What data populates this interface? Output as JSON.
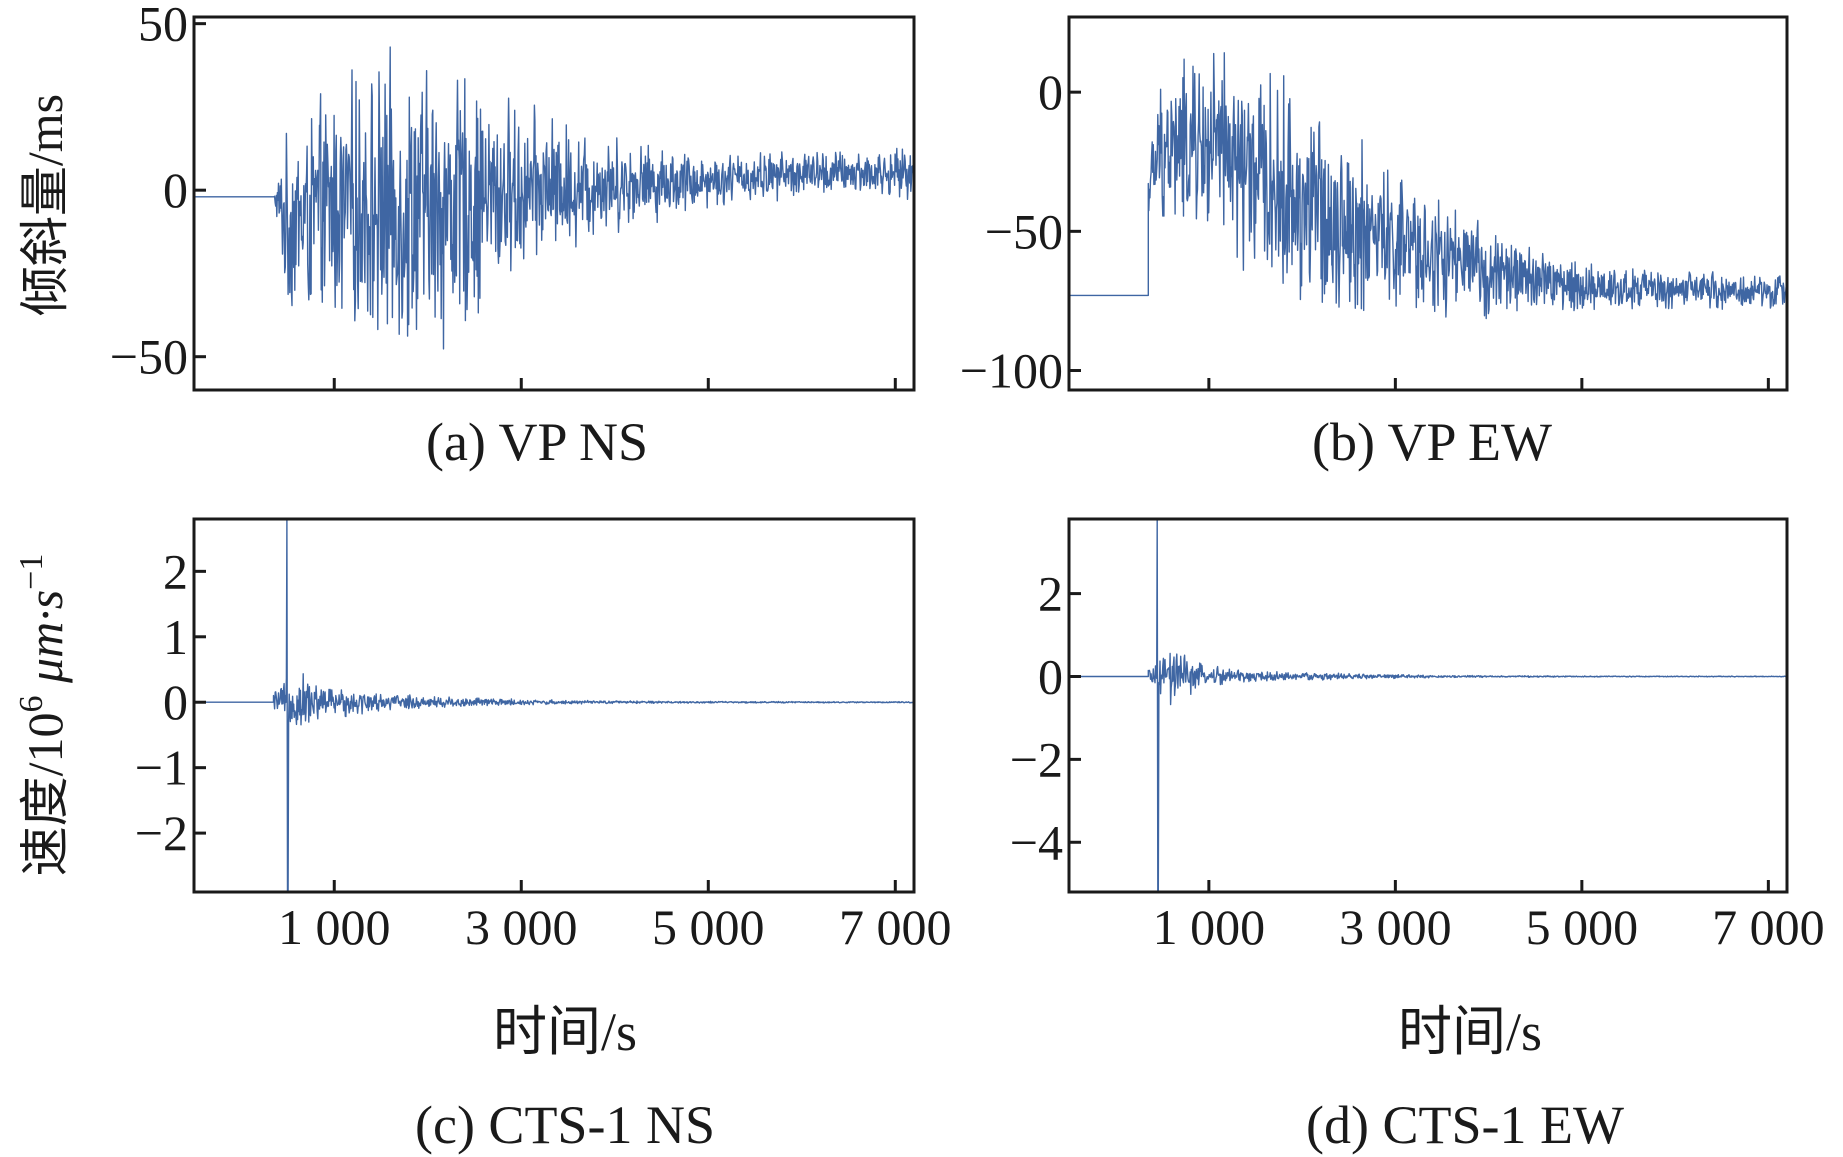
{
  "figure": {
    "ylabel_top": "倾斜量/ms",
    "ylabel_bottom_main": "速度/10",
    "ylabel_bottom_exp": "6",
    "ylabel_bottom_unit": " μm·s",
    "ylabel_bottom_unit_exp": "−1",
    "xlabel": "时间/s"
  },
  "chart_data": [
    {
      "id": "a",
      "type": "line",
      "caption": "(a) VP NS",
      "series": [
        {
          "name": "VP NS",
          "color": "#3f66a3",
          "envelope": {
            "baseline_before_event": -2,
            "event_start_s": 350,
            "points": [
              [
                350,
                -2,
                0
              ],
              [
                500,
                -10,
                30
              ],
              [
                1000,
                -5,
                40
              ],
              [
                1500,
                -5,
                48
              ],
              [
                2200,
                -5,
                48
              ],
              [
                3000,
                0,
                28
              ],
              [
                4000,
                2,
                16
              ],
              [
                5000,
                3,
                9
              ],
              [
                6000,
                5,
                8
              ],
              [
                7000,
                5,
                8
              ],
              [
                7200,
                5,
                8
              ]
            ]
          }
        }
      ],
      "xlim": [
        -500,
        7200
      ],
      "ylim": [
        -60,
        52
      ],
      "xticks": [
        1000,
        3000,
        5000,
        7000
      ],
      "xtick_labels_shown": false,
      "yticks": [
        -50,
        0,
        50
      ],
      "ytick_labels": [
        "−50",
        "0",
        "50"
      ]
    },
    {
      "id": "b",
      "type": "line",
      "caption": "(b) VP EW",
      "series": [
        {
          "name": "VP EW",
          "color": "#3f66a3",
          "envelope": {
            "baseline_before_event": -73,
            "event_start_s": 350,
            "points": [
              [
                350,
                -35,
                12
              ],
              [
                500,
                -20,
                30
              ],
              [
                1000,
                -20,
                40
              ],
              [
                2000,
                -40,
                45
              ],
              [
                3000,
                -55,
                30
              ],
              [
                4000,
                -65,
                18
              ],
              [
                5000,
                -70,
                10
              ],
              [
                6000,
                -71,
                8
              ],
              [
                7000,
                -72,
                7
              ],
              [
                7200,
                -72,
                7
              ]
            ]
          }
        }
      ],
      "xlim": [
        -500,
        7200
      ],
      "ylim": [
        -107,
        27
      ],
      "xticks": [
        1000,
        3000,
        5000,
        7000
      ],
      "xtick_labels_shown": false,
      "yticks": [
        -100,
        -50,
        0
      ],
      "ytick_labels": [
        "−100",
        "−50",
        "0"
      ]
    },
    {
      "id": "c",
      "type": "line",
      "caption": "(c) CTS-1 NS",
      "series": [
        {
          "name": "CTS-1 NS",
          "color": "#3f66a3",
          "envelope": {
            "baseline_before_event": 0,
            "event_start_s": 350,
            "spike": {
              "at_s": 500,
              "max": 2.8,
              "min": -2.9
            },
            "points": [
              [
                350,
                0,
                0.2
              ],
              [
                600,
                0,
                0.55
              ],
              [
                900,
                0,
                0.3
              ],
              [
                1500,
                0,
                0.15
              ],
              [
                2500,
                0,
                0.08
              ],
              [
                3500,
                0,
                0.03
              ],
              [
                5000,
                0,
                0.015
              ],
              [
                7200,
                0,
                0.01
              ]
            ]
          }
        }
      ],
      "xlim": [
        -500,
        7200
      ],
      "ylim": [
        -2.9,
        2.8
      ],
      "xticks": [
        1000,
        3000,
        5000,
        7000
      ],
      "xtick_labels": [
        "1 000",
        "3 000",
        "5 000",
        "7 000"
      ],
      "yticks": [
        -2,
        -1,
        0,
        1,
        2
      ],
      "ytick_labels": [
        "−2",
        "−1",
        "0",
        "1",
        "2"
      ]
    },
    {
      "id": "d",
      "type": "line",
      "caption": "(d) CTS-1 EW",
      "series": [
        {
          "name": "CTS-1 EW",
          "color": "#3f66a3",
          "envelope": {
            "baseline_before_event": 0,
            "event_start_s": 350,
            "spike": {
              "at_s": 450,
              "max": 3.8,
              "min": -5.2
            },
            "points": [
              [
                350,
                0,
                0.3
              ],
              [
                600,
                0,
                0.8
              ],
              [
                900,
                0,
                0.35
              ],
              [
                1500,
                0,
                0.15
              ],
              [
                2500,
                0,
                0.08
              ],
              [
                3500,
                0,
                0.03
              ],
              [
                5000,
                0,
                0.015
              ],
              [
                7200,
                0,
                0.01
              ]
            ]
          }
        }
      ],
      "xlim": [
        -500,
        7200
      ],
      "ylim": [
        -5.2,
        3.8
      ],
      "xticks": [
        1000,
        3000,
        5000,
        7000
      ],
      "xtick_labels": [
        "1 000",
        "3 000",
        "5 000",
        "7 000"
      ],
      "yticks": [
        -4,
        -2,
        0,
        2
      ],
      "ytick_labels": [
        "−4",
        "−2",
        "0",
        "2"
      ]
    }
  ]
}
